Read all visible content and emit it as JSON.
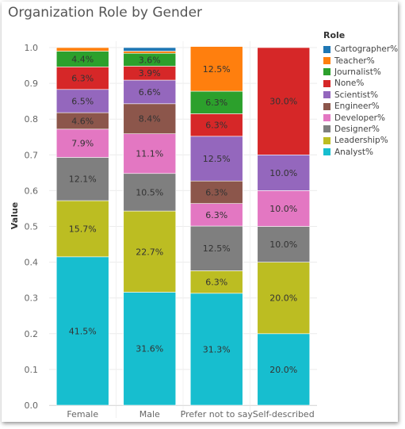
{
  "chart_data": {
    "type": "bar",
    "stacked": true,
    "title": "Organization Role by Gender",
    "ylabel": "Value",
    "xlabel": "",
    "ylim": [
      0,
      1.0
    ],
    "yticks": [
      "0.0",
      "0.1",
      "0.2",
      "0.3",
      "0.4",
      "0.5",
      "0.6",
      "0.7",
      "0.8",
      "0.9",
      "1.0"
    ],
    "categories": [
      "Female",
      "Male",
      "Prefer not to say",
      "Self-described"
    ],
    "legend_title": "Role",
    "legend_position": "right",
    "series": [
      {
        "name": "Analyst%",
        "color": "#17becf",
        "values": [
          0.415,
          0.316,
          0.313,
          0.2
        ],
        "labels": [
          "41.5%",
          "31.6%",
          "31.3%",
          "20.0%"
        ]
      },
      {
        "name": "Leadership%",
        "color": "#bcbd22",
        "values": [
          0.157,
          0.227,
          0.063,
          0.2
        ],
        "labels": [
          "15.7%",
          "22.7%",
          "6.3%",
          "20.0%"
        ]
      },
      {
        "name": "Designer%",
        "color": "#7f7f7f",
        "values": [
          0.121,
          0.105,
          0.125,
          0.1
        ],
        "labels": [
          "12.1%",
          "10.5%",
          "12.5%",
          "10.0%"
        ]
      },
      {
        "name": "Developer%",
        "color": "#e377c2",
        "values": [
          0.079,
          0.111,
          0.063,
          0.1
        ],
        "labels": [
          "7.9%",
          "11.1%",
          "6.3%",
          "10.0%"
        ]
      },
      {
        "name": "Engineer%",
        "color": "#8c564b",
        "values": [
          0.046,
          0.084,
          0.063,
          0.0
        ],
        "labels": [
          "4.6%",
          "8.4%",
          "6.3%",
          ""
        ]
      },
      {
        "name": "Scientist%",
        "color": "#9467bd",
        "values": [
          0.065,
          0.066,
          0.125,
          0.1
        ],
        "labels": [
          "6.5%",
          "6.6%",
          "12.5%",
          "10.0%"
        ]
      },
      {
        "name": "None%",
        "color": "#d62728",
        "values": [
          0.063,
          0.039,
          0.063,
          0.3
        ],
        "labels": [
          "6.3%",
          "3.9%",
          "6.3%",
          "30.0%"
        ]
      },
      {
        "name": "Journalist%",
        "color": "#2ca02c",
        "values": [
          0.044,
          0.036,
          0.063,
          0.0
        ],
        "labels": [
          "4.4%",
          "3.6%",
          "6.3%",
          ""
        ]
      },
      {
        "name": "Teacher%",
        "color": "#ff7f0e",
        "values": [
          0.01,
          0.006,
          0.125,
          0.0
        ],
        "labels": [
          "",
          "",
          "12.5%",
          ""
        ]
      },
      {
        "name": "Cartographer%",
        "color": "#1f77b4",
        "values": [
          0.0,
          0.01,
          0.0,
          0.0
        ],
        "labels": [
          "",
          "",
          "",
          ""
        ]
      }
    ]
  }
}
